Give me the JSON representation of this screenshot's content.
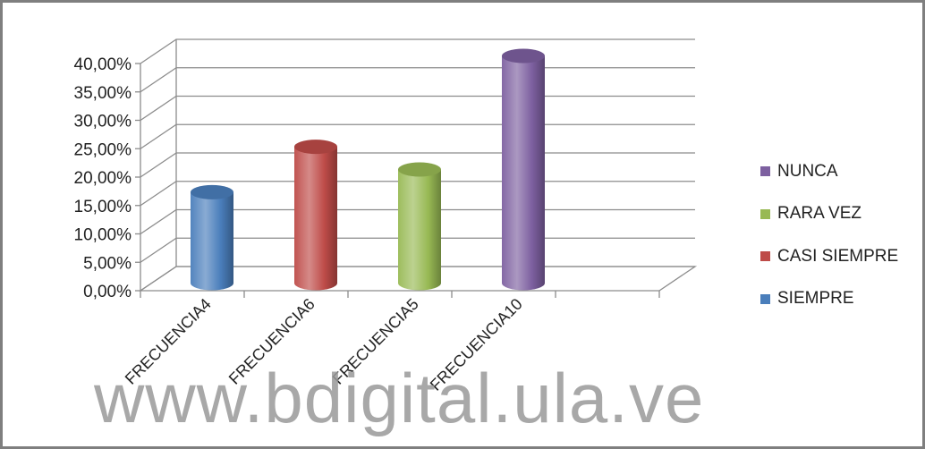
{
  "chart_data": {
    "type": "bar",
    "style": "3d-cylinder",
    "categories": [
      "FRECUENCIA4",
      "FRECUENCIA6",
      "FRECUENCIA5",
      "FRECUENCIA10"
    ],
    "series": [
      {
        "name": "SIEMPRE",
        "color": "#4a7ebb",
        "values": [
          16,
          null,
          null,
          null
        ]
      },
      {
        "name": "CASI SIEMPRE",
        "color": "#be4b48",
        "values": [
          null,
          24,
          null,
          null
        ]
      },
      {
        "name": "RARA VEZ",
        "color": "#98b954",
        "values": [
          null,
          null,
          20,
          null
        ]
      },
      {
        "name": "NUNCA",
        "color": "#7d60a0",
        "values": [
          null,
          null,
          null,
          40
        ]
      }
    ],
    "y_ticks": [
      "0,00%",
      "5,00%",
      "10,00%",
      "15,00%",
      "20,00%",
      "25,00%",
      "30,00%",
      "35,00%",
      "40,00%"
    ],
    "ylim": [
      0,
      40
    ],
    "y_unit": "%",
    "grid": true,
    "legend_position": "right",
    "legend_order": [
      "NUNCA",
      "RARA VEZ",
      "CASI SIEMPRE",
      "SIEMPRE"
    ]
  },
  "watermark": "www.bdigital.ula.ve"
}
